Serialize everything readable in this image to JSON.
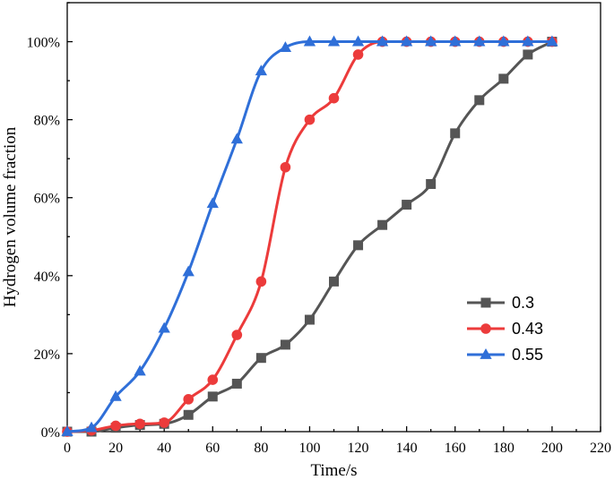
{
  "chart_data": {
    "type": "line",
    "title": "",
    "xlabel": "Time/s",
    "ylabel": "Hydrogen volume fraction",
    "xlim": [
      0,
      220
    ],
    "ylim": [
      0,
      1.1
    ],
    "x_ticks": [
      0,
      20,
      40,
      60,
      80,
      100,
      120,
      140,
      160,
      180,
      200,
      220
    ],
    "y_ticks": [
      0,
      0.2,
      0.4,
      0.6,
      0.8,
      1.0
    ],
    "y_tick_labels": [
      "0%",
      "20%",
      "40%",
      "60%",
      "80%",
      "100%"
    ],
    "x_tick_labels": [
      "0",
      "20",
      "40",
      "60",
      "80",
      "100",
      "120",
      "140",
      "160",
      "180",
      "200",
      "220"
    ],
    "grid": false,
    "legend_position": "bottom-right",
    "series": [
      {
        "name": "0.3",
        "color": "#555555",
        "marker": "square",
        "x": [
          0,
          10,
          20,
          30,
          40,
          50,
          60,
          70,
          80,
          90,
          100,
          110,
          120,
          130,
          140,
          150,
          160,
          170,
          180,
          190,
          200
        ],
        "y": [
          0.0,
          0.0,
          0.01,
          0.017,
          0.02,
          0.043,
          0.09,
          0.123,
          0.189,
          0.223,
          0.287,
          0.385,
          0.478,
          0.53,
          0.582,
          0.635,
          0.765,
          0.85,
          0.905,
          0.967,
          1.0
        ]
      },
      {
        "name": "0.43",
        "color": "#ec3b3b",
        "marker": "circle",
        "x": [
          0,
          10,
          20,
          30,
          40,
          50,
          60,
          70,
          80,
          90,
          100,
          110,
          120,
          130,
          140,
          150,
          160,
          170,
          180,
          190,
          200
        ],
        "y": [
          0.0,
          0.003,
          0.015,
          0.02,
          0.023,
          0.083,
          0.133,
          0.248,
          0.385,
          0.678,
          0.8,
          0.855,
          0.967,
          1.0,
          1.0,
          1.0,
          1.0,
          1.0,
          1.0,
          1.0,
          1.0
        ]
      },
      {
        "name": "0.55",
        "color": "#2f6fd8",
        "marker": "triangle",
        "x": [
          0,
          10,
          20,
          30,
          40,
          50,
          60,
          70,
          80,
          90,
          100,
          110,
          120,
          130,
          140,
          150,
          160,
          170,
          180,
          190,
          200
        ],
        "y": [
          0.0,
          0.01,
          0.09,
          0.155,
          0.265,
          0.41,
          0.585,
          0.75,
          0.925,
          0.985,
          1.0,
          1.0,
          1.0,
          1.0,
          1.0,
          1.0,
          1.0,
          1.0,
          1.0,
          1.0,
          1.0
        ]
      }
    ]
  }
}
